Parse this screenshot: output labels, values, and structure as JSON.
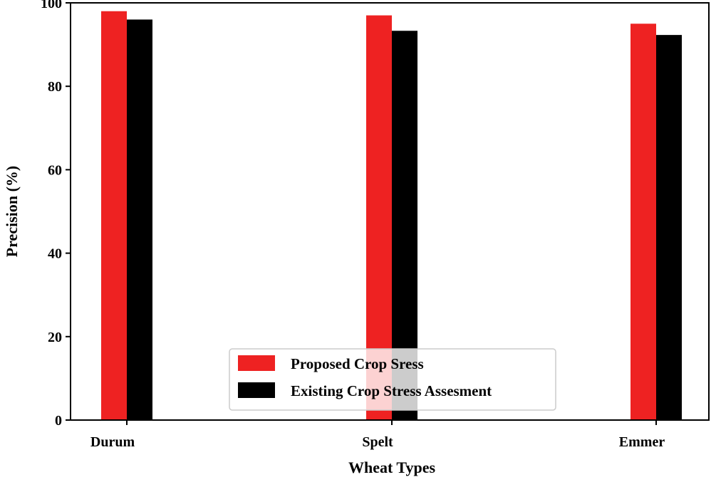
{
  "chart_data": {
    "type": "bar",
    "title": "",
    "xlabel": "Wheat Types",
    "ylabel": "Precision (%)",
    "categories": [
      "Durum",
      "Spelt",
      "Emmer"
    ],
    "series": [
      {
        "name": "Proposed Crop Sress",
        "values": [
          98,
          97,
          95
        ],
        "color": "#ee2222"
      },
      {
        "name": "Existing Crop Stress Assesment",
        "values": [
          96,
          93.3,
          92.3
        ],
        "color": "#000000"
      }
    ],
    "ylim": [
      0,
      100
    ],
    "yticks": [
      0,
      20,
      40,
      60,
      80,
      100
    ],
    "grid": false,
    "legend_position": "bottom-center"
  }
}
